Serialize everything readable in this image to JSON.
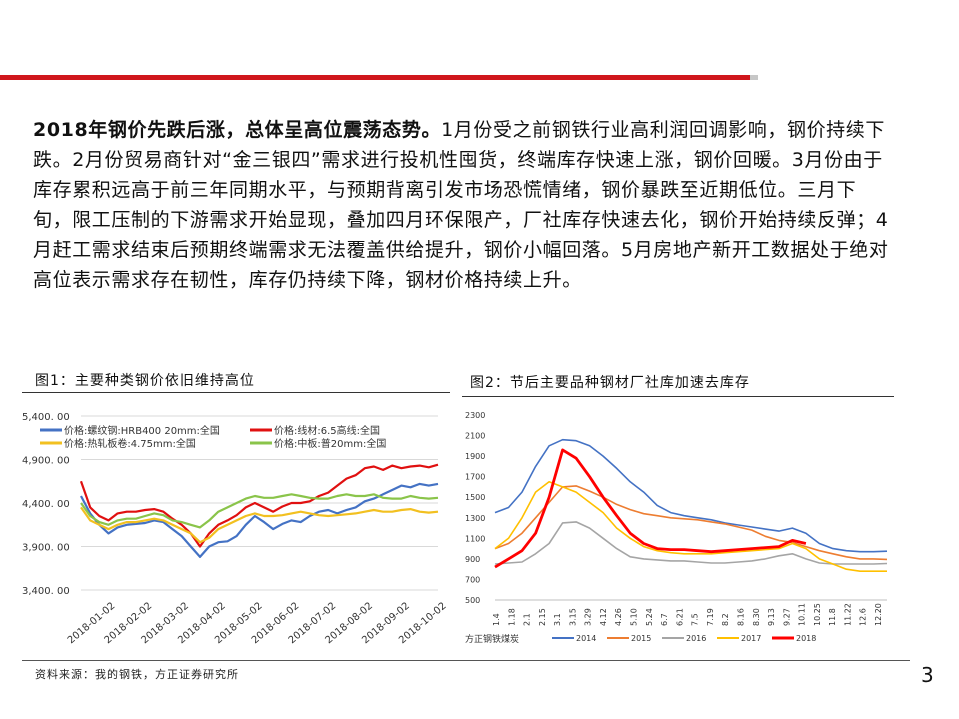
{
  "paragraph": {
    "lead": "2018年钢价先跌后涨，总体呈高位震荡态势。",
    "body": "1月份受之前钢铁行业高利润回调影响，钢价持续下跌。2月份贸易商针对“金三银四”需求进行投机性囤货，终端库存快速上涨，钢价回暖。3月份由于库存累积远高于前三年同期水平，与预期背离引发市场恐慌情绪，钢价暴跌至近期低位。三月下旬，限工压制的下游需求开始显现，叠加四月环保限产，厂社库存快速去化，钢价开始持续反弹；4月赶工需求结束后预期终端需求无法覆盖供给提升，钢价小幅回落。5月房地产新开工数据处于绝对高位表示需求存在韧性，库存仍持续下降，钢材价格持续上升。"
  },
  "figure1": {
    "title": "图1：主要种类钢价依旧维持高位"
  },
  "figure2": {
    "title": "图2：节后主要品种钢材厂社库加速去库存"
  },
  "source": "资料来源：我的钢铁，方正证券研究所",
  "page_number": "3",
  "colors": {
    "accent_red": "#d0161c",
    "grey": "#c7c7c7"
  },
  "chart_data": [
    {
      "type": "line",
      "title": "",
      "y_ticks": [
        "5,400. 00",
        "4,900. 00",
        "4,400. 00",
        "3,900. 00",
        "3,400. 00"
      ],
      "ylim": [
        3400,
        5400
      ],
      "x_ticks": [
        "2018-01-02",
        "2018-02-02",
        "2018-03-02",
        "2018-04-02",
        "2018-05-02",
        "2018-06-02",
        "2018-07-02",
        "2018-08-02",
        "2018-09-02",
        "2018-10-02"
      ],
      "grid": true,
      "legend_position": "top-left",
      "series": [
        {
          "name": "价格:螺纹钢:HRB400 20mm:全国",
          "color": "#4472c4",
          "values": [
            4480,
            4280,
            4150,
            4050,
            4120,
            4150,
            4160,
            4170,
            4200,
            4180,
            4100,
            4020,
            3900,
            3780,
            3900,
            3950,
            3960,
            4020,
            4150,
            4250,
            4180,
            4100,
            4160,
            4200,
            4180,
            4250,
            4300,
            4320,
            4280,
            4320,
            4350,
            4420,
            4450,
            4500,
            4550,
            4600,
            4580,
            4620,
            4600,
            4620
          ]
        },
        {
          "name": "价格:线材:6.5高线:全国",
          "color": "#e01010",
          "values": [
            4650,
            4350,
            4250,
            4200,
            4280,
            4300,
            4300,
            4320,
            4330,
            4300,
            4220,
            4150,
            4050,
            3900,
            4050,
            4150,
            4200,
            4260,
            4350,
            4400,
            4350,
            4300,
            4360,
            4400,
            4400,
            4420,
            4480,
            4520,
            4600,
            4680,
            4720,
            4800,
            4820,
            4780,
            4830,
            4800,
            4820,
            4830,
            4810,
            4840
          ]
        },
        {
          "name": "价格:热轧板卷:4.75mm:全国",
          "color": "#f2c020",
          "values": [
            4350,
            4200,
            4150,
            4100,
            4150,
            4180,
            4180,
            4200,
            4220,
            4200,
            4150,
            4100,
            4050,
            3950,
            4000,
            4100,
            4150,
            4200,
            4250,
            4280,
            4250,
            4250,
            4260,
            4280,
            4300,
            4280,
            4260,
            4250,
            4260,
            4270,
            4280,
            4300,
            4320,
            4300,
            4300,
            4320,
            4330,
            4300,
            4290,
            4300
          ]
        },
        {
          "name": "价格:中板:普20mm:全国",
          "color": "#8ac44a",
          "values": [
            4400,
            4250,
            4180,
            4150,
            4200,
            4220,
            4220,
            4250,
            4280,
            4260,
            4200,
            4180,
            4150,
            4120,
            4200,
            4300,
            4350,
            4400,
            4450,
            4480,
            4460,
            4460,
            4480,
            4500,
            4480,
            4460,
            4450,
            4450,
            4480,
            4500,
            4480,
            4480,
            4500,
            4460,
            4450,
            4450,
            4480,
            4460,
            4450,
            4460
          ]
        }
      ]
    },
    {
      "type": "line",
      "title": "",
      "y_ticks": [
        "2300",
        "2100",
        "1900",
        "1700",
        "1500",
        "1300",
        "1100",
        "900",
        "700",
        "500"
      ],
      "ylim": [
        500,
        2300
      ],
      "x_ticks": [
        "1.4",
        "1.18",
        "2.1",
        "2.15",
        "3.1",
        "3.15",
        "3.29",
        "4.12",
        "4.26",
        "5.10",
        "5.24",
        "6.7",
        "6.21",
        "7.5",
        "7.19",
        "8.2",
        "8.16",
        "8.30",
        "9.13",
        "9.27",
        "10.11",
        "10.25",
        "11.8",
        "11.22",
        "12.6",
        "12.20"
      ],
      "grid": false,
      "legend_position": "bottom",
      "legend_prefix": "方正钢铁煤炭",
      "series": [
        {
          "name": "2014",
          "color": "#4472c4",
          "values": [
            1350,
            1400,
            1550,
            1800,
            2000,
            2060,
            2050,
            2000,
            1900,
            1780,
            1650,
            1550,
            1420,
            1350,
            1320,
            1300,
            1280,
            1250,
            1230,
            1210,
            1190,
            1170,
            1200,
            1150,
            1050,
            1000,
            980,
            970,
            970,
            975
          ]
        },
        {
          "name": "2015",
          "color": "#ed7d31",
          "values": [
            1000,
            1050,
            1150,
            1300,
            1450,
            1600,
            1610,
            1560,
            1500,
            1430,
            1380,
            1340,
            1320,
            1300,
            1290,
            1280,
            1260,
            1240,
            1210,
            1180,
            1120,
            1080,
            1060,
            1020,
            980,
            950,
            920,
            900,
            900,
            895
          ]
        },
        {
          "name": "2016",
          "color": "#a5a5a5",
          "values": [
            850,
            860,
            870,
            950,
            1050,
            1250,
            1260,
            1200,
            1100,
            1000,
            920,
            900,
            890,
            880,
            880,
            870,
            860,
            860,
            870,
            880,
            900,
            930,
            950,
            900,
            860,
            850,
            850,
            850,
            850,
            855
          ]
        },
        {
          "name": "2017",
          "color": "#ffc000",
          "values": [
            1000,
            1100,
            1300,
            1550,
            1650,
            1600,
            1550,
            1450,
            1350,
            1200,
            1100,
            1020,
            980,
            960,
            950,
            950,
            950,
            960,
            970,
            980,
            990,
            1000,
            1050,
            1000,
            900,
            850,
            800,
            780,
            780,
            780
          ]
        },
        {
          "name": "2018",
          "color": "#ff0000",
          "values": [
            820,
            900,
            980,
            1150,
            1500,
            1960,
            1880,
            1700,
            1500,
            1320,
            1150,
            1050,
            1000,
            990,
            990,
            980,
            970,
            980,
            990,
            1000,
            1010,
            1020,
            1080,
            1050,
            null,
            null,
            null,
            null,
            null,
            null
          ]
        }
      ]
    }
  ]
}
